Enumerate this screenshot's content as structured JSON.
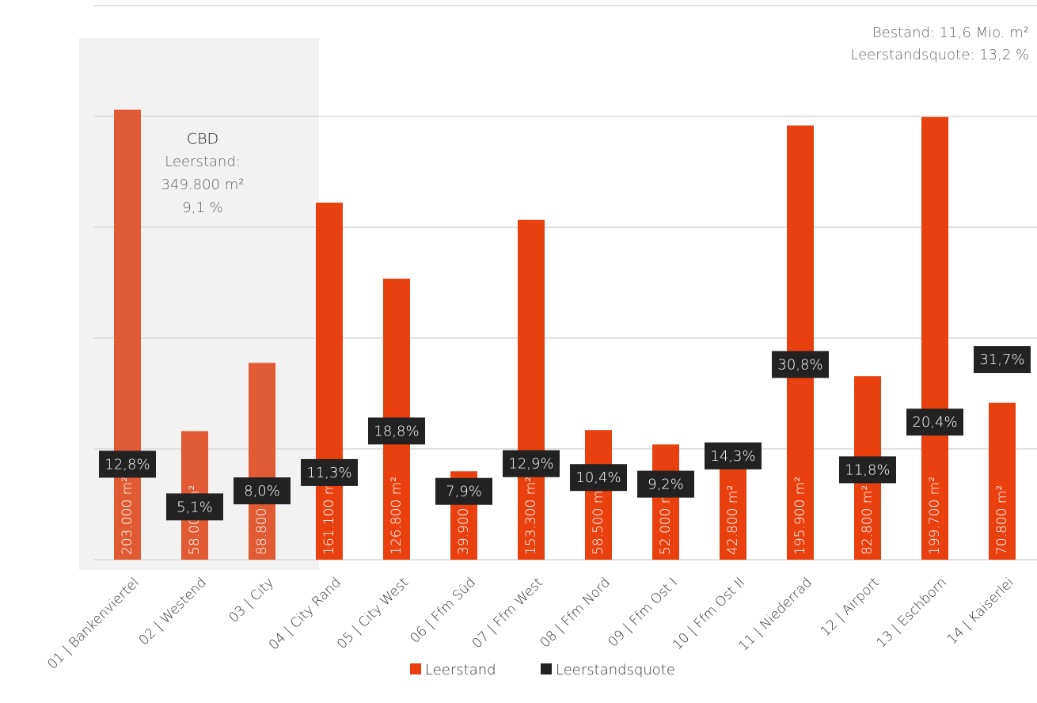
{
  "chart_data": {
    "type": "bar",
    "categories": [
      "01 | Bankenviertel",
      "02 | Westend",
      "03 | City",
      "04 | City Rand",
      "05 | City West",
      "06 | Ffm Süd",
      "07 | Ffm West",
      "08 | Ffm Nord",
      "09 | Ffm Ost I",
      "10 | Ffm Ost II",
      "11 | Niederrad",
      "12 | Airport",
      "13 | Eschborn",
      "14 | Kaiserlei"
    ],
    "series": [
      {
        "name": "Leerstand",
        "color": "#e8410f",
        "colors": [
          "#e05a33",
          "#e05a33",
          "#e05a33",
          "#e8410f",
          "#e8410f",
          "#e8410f",
          "#e8410f",
          "#e8410f",
          "#e8410f",
          "#e8410f",
          "#e8410f",
          "#e8410f",
          "#e8410f",
          "#e8410f"
        ],
        "values": [
          203000,
          58000,
          88800,
          161100,
          126800,
          39900,
          153300,
          58500,
          52000,
          42800,
          195900,
          82800,
          199700,
          70800
        ],
        "value_labels": [
          "203.000 m²",
          "58.000 m²",
          "88.800 m²",
          "161.100 m²",
          "126.800 m²",
          "39.900 m²",
          "153.300 m²",
          "58.500 m²",
          "52.000 m²",
          "42.800 m²",
          "195.900 m²",
          "82.800 m²",
          "199.700 m²",
          "70.800 m²"
        ]
      },
      {
        "name": "Leerstandsquote",
        "color": "#222222",
        "axis": "y2",
        "values": [
          12.8,
          5.1,
          8.0,
          11.3,
          18.8,
          7.9,
          12.9,
          10.4,
          9.2,
          14.3,
          30.8,
          11.8,
          20.4,
          31.7
        ],
        "value_labels": [
          "12,8%",
          "5,1%",
          "8,0%",
          "11,3%",
          "18,8%",
          "7,9%",
          "12,9%",
          "10,4%",
          "9,2%",
          "14,3%",
          "30,8%",
          "11,8%",
          "20,4%",
          "31,7%"
        ]
      }
    ],
    "ylim": [
      0,
      250000
    ],
    "yticks": [
      0,
      50000,
      100000,
      150000,
      200000,
      250000
    ],
    "y2lim": [
      0,
      100
    ],
    "grid": true,
    "legend": "bottom",
    "annotations": {
      "summary": [
        "Bestand: 11,6 Mio. m²",
        "Leerstandsquote: 13,2 %"
      ],
      "cbd": [
        "CBD",
        "Leerstand:",
        "349.800 m²",
        "9,1 %"
      ]
    }
  }
}
